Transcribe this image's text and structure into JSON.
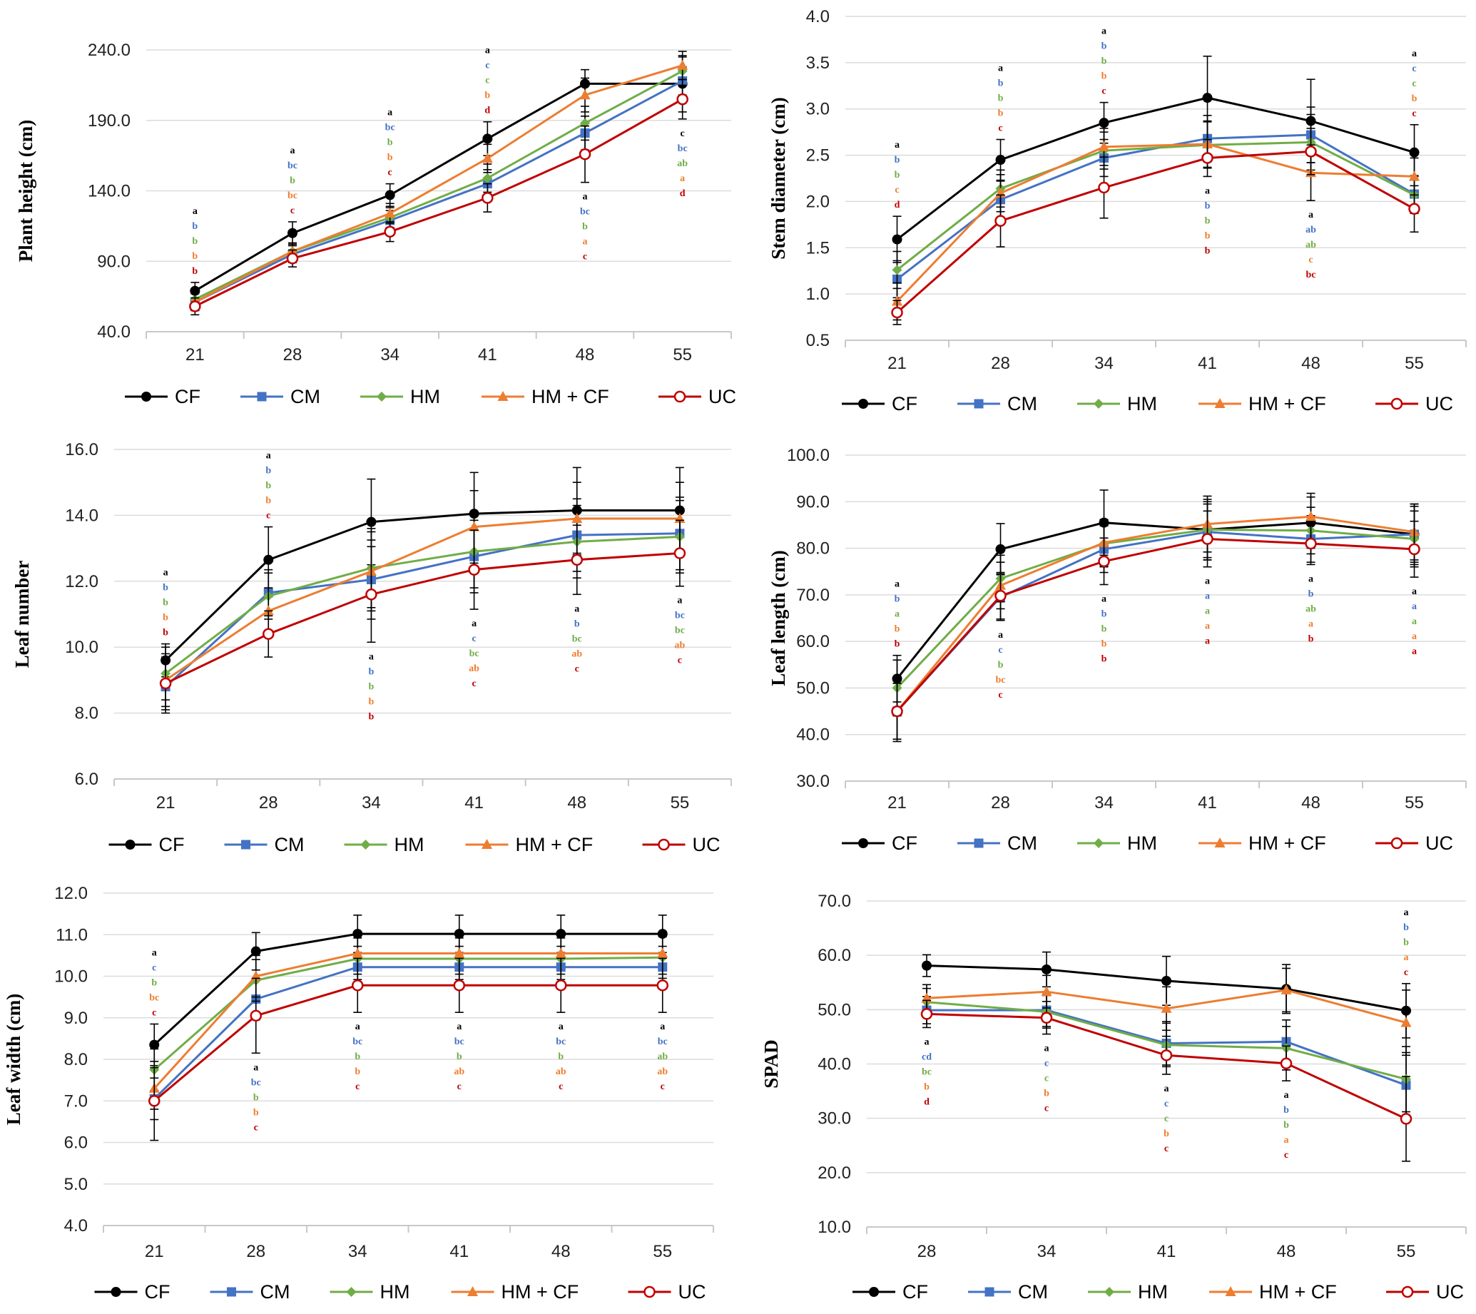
{
  "colors": {
    "CF": "#000000",
    "CM": "#4472C4",
    "HM": "#70AD47",
    "HM + CF": "#ED7D31",
    "UC": "#C00000"
  },
  "legend": [
    "CF",
    "CM",
    "HM",
    "HM + CF",
    "UC"
  ],
  "chart_data": [
    {
      "type": "line",
      "ylabel": "Plant height (cm)",
      "x": [
        "21",
        "28",
        "34",
        "41",
        "48",
        "55"
      ],
      "ylim": [
        40,
        240
      ],
      "yticks": [
        "40.0",
        "90.0",
        "140.0",
        "190.0",
        "240.0"
      ],
      "grid": true,
      "legend_position": "bottom",
      "series": [
        {
          "name": "CF",
          "values": [
            69,
            110,
            137,
            177,
            216,
            216
          ],
          "err": [
            6,
            8,
            8,
            12,
            10,
            20
          ]
        },
        {
          "name": "CM",
          "values": [
            61,
            95,
            119,
            145,
            181,
            218
          ],
          "err": [
            6,
            6,
            7,
            10,
            12,
            10
          ]
        },
        {
          "name": "HM",
          "values": [
            63,
            97,
            121,
            149,
            188,
            225
          ],
          "err": [
            6,
            6,
            7,
            10,
            12,
            10
          ]
        },
        {
          "name": "HM + CF",
          "values": [
            61,
            97,
            124,
            163,
            208,
            229
          ],
          "err": [
            6,
            6,
            7,
            10,
            12,
            10
          ]
        },
        {
          "name": "UC",
          "values": [
            58,
            92,
            111,
            135,
            166,
            205
          ],
          "err": [
            6,
            6,
            7,
            10,
            20,
            14
          ]
        }
      ],
      "letters": [
        {
          "x": "21",
          "pos": "above",
          "values": [
            "a",
            "b",
            "b",
            "b",
            "b"
          ]
        },
        {
          "x": "28",
          "pos": "above",
          "values": [
            "a",
            "bc",
            "b",
            "bc",
            "c"
          ]
        },
        {
          "x": "34",
          "pos": "above",
          "values": [
            "a",
            "bc",
            "b",
            "b",
            "c"
          ]
        },
        {
          "x": "41",
          "pos": "above",
          "values": [
            "a",
            "c",
            "c",
            "b",
            "d"
          ]
        },
        {
          "x": "48",
          "pos": "below",
          "values": [
            "a",
            "bc",
            "b",
            "a",
            "c"
          ]
        },
        {
          "x": "55",
          "pos": "below",
          "values": [
            "c",
            "bc",
            "ab",
            "a",
            "d"
          ]
        }
      ]
    },
    {
      "type": "line",
      "ylabel": "Stem diameter (cm)",
      "x": [
        "21",
        "28",
        "34",
        "41",
        "48",
        "55"
      ],
      "ylim": [
        0.5,
        4.0
      ],
      "yticks": [
        "0.5",
        "1.0",
        "1.5",
        "2.0",
        "2.5",
        "3.0",
        "3.5",
        "4.0"
      ],
      "grid": true,
      "legend_position": "bottom",
      "series": [
        {
          "name": "CF",
          "values": [
            1.59,
            2.45,
            2.85,
            3.12,
            2.87,
            2.53
          ],
          "err": [
            0.25,
            0.22,
            0.22,
            0.45,
            0.45,
            0.3
          ]
        },
        {
          "name": "CM",
          "values": [
            1.16,
            2.02,
            2.47,
            2.68,
            2.72,
            2.08
          ],
          "err": [
            0.2,
            0.2,
            0.2,
            0.25,
            0.3,
            0.2
          ]
        },
        {
          "name": "HM",
          "values": [
            1.26,
            2.14,
            2.55,
            2.61,
            2.64,
            2.07
          ],
          "err": [
            0.2,
            0.2,
            0.2,
            0.25,
            0.3,
            0.2
          ]
        },
        {
          "name": "HM + CF",
          "values": [
            0.92,
            2.09,
            2.59,
            2.62,
            2.31,
            2.27
          ],
          "err": [
            0.2,
            0.2,
            0.2,
            0.25,
            0.3,
            0.2
          ]
        },
        {
          "name": "UC",
          "values": [
            0.8,
            1.79,
            2.15,
            2.47,
            2.54,
            1.92
          ],
          "err": [
            0.13,
            0.28,
            0.33,
            0.2,
            0.25,
            0.25
          ]
        }
      ],
      "letters": [
        {
          "x": "21",
          "pos": "above",
          "values": [
            "a",
            "b",
            "b",
            "c",
            "d"
          ]
        },
        {
          "x": "28",
          "pos": "above",
          "values": [
            "a",
            "b",
            "b",
            "b",
            "c"
          ]
        },
        {
          "x": "34",
          "pos": "above",
          "values": [
            "a",
            "b",
            "b",
            "b",
            "c"
          ]
        },
        {
          "x": "41",
          "pos": "below",
          "values": [
            "a",
            "b",
            "b",
            "b",
            "b"
          ]
        },
        {
          "x": "48",
          "pos": "below",
          "values": [
            "a",
            "ab",
            "ab",
            "c",
            "bc"
          ]
        },
        {
          "x": "55",
          "pos": "above",
          "values": [
            "a",
            "c",
            "c",
            "b",
            "c"
          ]
        }
      ]
    },
    {
      "type": "line",
      "ylabel": "Leaf number",
      "x": [
        "21",
        "28",
        "34",
        "41",
        "48",
        "55"
      ],
      "ylim": [
        6,
        16
      ],
      "yticks": [
        "6.0",
        "8.0",
        "10.0",
        "12.0",
        "14.0",
        "16.0"
      ],
      "grid": true,
      "legend_position": "bottom",
      "series": [
        {
          "name": "CF",
          "values": [
            9.6,
            12.65,
            13.8,
            14.05,
            14.15,
            14.15
          ],
          "err": [
            0.5,
            1.0,
            1.3,
            1.25,
            1.3,
            1.3
          ]
        },
        {
          "name": "CM",
          "values": [
            8.8,
            11.65,
            12.05,
            12.75,
            13.4,
            13.45
          ],
          "err": [
            0.8,
            0.7,
            1.2,
            1.1,
            1.1,
            1.1
          ]
        },
        {
          "name": "HM",
          "values": [
            9.2,
            11.55,
            12.4,
            12.9,
            13.2,
            13.35
          ],
          "err": [
            0.8,
            0.7,
            1.2,
            1.1,
            1.1,
            1.1
          ]
        },
        {
          "name": "HM + CF",
          "values": [
            9.0,
            11.1,
            12.3,
            13.65,
            13.9,
            13.9
          ],
          "err": [
            0.8,
            0.7,
            1.2,
            1.1,
            1.1,
            1.1
          ]
        },
        {
          "name": "UC",
          "values": [
            8.9,
            10.4,
            11.6,
            12.35,
            12.65,
            12.85
          ],
          "err": [
            0.8,
            0.7,
            1.45,
            1.2,
            1.05,
            1.0
          ]
        }
      ],
      "letters": [
        {
          "x": "21",
          "pos": "above",
          "values": [
            "a",
            "b",
            "b",
            "b",
            "b"
          ]
        },
        {
          "x": "28",
          "pos": "above",
          "values": [
            "a",
            "b",
            "b",
            "b",
            "c"
          ]
        },
        {
          "x": "34",
          "pos": "below",
          "values": [
            "a",
            "b",
            "b",
            "b",
            "b"
          ]
        },
        {
          "x": "41",
          "pos": "below",
          "values": [
            "a",
            "c",
            "bc",
            "ab",
            "c"
          ]
        },
        {
          "x": "48",
          "pos": "below",
          "values": [
            "a",
            "b",
            "bc",
            "ab",
            "c"
          ]
        },
        {
          "x": "55",
          "pos": "below",
          "values": [
            "a",
            "bc",
            "bc",
            "ab",
            "c"
          ]
        }
      ]
    },
    {
      "type": "line",
      "ylabel": "Leaf length (cm)",
      "x": [
        "21",
        "28",
        "34",
        "41",
        "48",
        "55"
      ],
      "ylim": [
        30,
        100
      ],
      "yticks": [
        "30.0",
        "40.0",
        "50.0",
        "60.0",
        "70.0",
        "80.0",
        "90.0",
        "100.0"
      ],
      "grid": true,
      "legend_position": "bottom",
      "series": [
        {
          "name": "CF",
          "values": [
            52,
            79.8,
            85.5,
            84,
            85.5,
            83
          ],
          "err": [
            5,
            5.5,
            7,
            6.5,
            5.5,
            6.5
          ]
        },
        {
          "name": "CM",
          "values": [
            45,
            69.5,
            79.8,
            83.5,
            82,
            83
          ],
          "err": [
            6,
            5,
            5,
            6,
            5,
            6
          ]
        },
        {
          "name": "HM",
          "values": [
            50,
            73.5,
            81,
            84,
            83.8,
            82
          ],
          "err": [
            6,
            5,
            5,
            6,
            5,
            6
          ]
        },
        {
          "name": "HM + CF",
          "values": [
            45,
            72,
            81.2,
            85.2,
            86.8,
            83.5
          ],
          "err": [
            6,
            5,
            5,
            6,
            5,
            6
          ]
        },
        {
          "name": "UC",
          "values": [
            45,
            69.8,
            77.2,
            82,
            81,
            79.8
          ],
          "err": [
            6.5,
            5,
            5,
            6,
            4.5,
            6
          ]
        }
      ],
      "letters": [
        {
          "x": "21",
          "pos": "above",
          "values": [
            "a",
            "b",
            "a",
            "b",
            "b"
          ]
        },
        {
          "x": "28",
          "pos": "below",
          "values": [
            "a",
            "c",
            "b",
            "bc",
            "c"
          ]
        },
        {
          "x": "34",
          "pos": "below",
          "values": [
            "a",
            "b",
            "b",
            "b",
            "b"
          ]
        },
        {
          "x": "41",
          "pos": "below",
          "values": [
            "a",
            "a",
            "a",
            "a",
            "a"
          ]
        },
        {
          "x": "48",
          "pos": "below",
          "values": [
            "a",
            "b",
            "ab",
            "a",
            "b"
          ]
        },
        {
          "x": "55",
          "pos": "below",
          "values": [
            "a",
            "a",
            "a",
            "a",
            "a"
          ]
        }
      ]
    },
    {
      "type": "line",
      "ylabel": "Leaf width (cm)",
      "x": [
        "21",
        "28",
        "34",
        "41",
        "48",
        "55"
      ],
      "ylim": [
        4,
        12
      ],
      "yticks": [
        "4.0",
        "5.0",
        "6.0",
        "7.0",
        "8.0",
        "9.0",
        "10.0",
        "11.0",
        "12.0"
      ],
      "grid": true,
      "legend_position": "bottom",
      "series": [
        {
          "name": "CF",
          "values": [
            8.35,
            10.6,
            11.02,
            11.02,
            11.02,
            11.02
          ],
          "err": [
            0.5,
            0.45,
            0.45,
            0.45,
            0.45,
            0.45
          ]
        },
        {
          "name": "CM",
          "values": [
            7.05,
            9.45,
            10.22,
            10.22,
            10.22,
            10.22
          ],
          "err": [
            0.5,
            0.5,
            0.5,
            0.5,
            0.5,
            0.5
          ]
        },
        {
          "name": "HM",
          "values": [
            7.75,
            9.9,
            10.42,
            10.42,
            10.42,
            10.45
          ],
          "err": [
            0.5,
            0.5,
            0.5,
            0.5,
            0.5,
            0.5
          ]
        },
        {
          "name": "HM + CF",
          "values": [
            7.3,
            10.0,
            10.55,
            10.55,
            10.55,
            10.55
          ],
          "err": [
            0.5,
            0.5,
            0.5,
            0.5,
            0.5,
            0.5
          ]
        },
        {
          "name": "UC",
          "values": [
            7.0,
            9.05,
            9.78,
            9.78,
            9.78,
            9.78
          ],
          "err": [
            0.95,
            0.9,
            0.65,
            0.65,
            0.65,
            0.65
          ]
        }
      ],
      "letters": [
        {
          "x": "21",
          "pos": "above",
          "values": [
            "a",
            "c",
            "b",
            "bc",
            "c"
          ]
        },
        {
          "x": "28",
          "pos": "below",
          "values": [
            "a",
            "bc",
            "b",
            "b",
            "c"
          ]
        },
        {
          "x": "34",
          "pos": "below",
          "values": [
            "a",
            "bc",
            "b",
            "b",
            "c"
          ]
        },
        {
          "x": "41",
          "pos": "below",
          "values": [
            "a",
            "bc",
            "b",
            "ab",
            "c"
          ]
        },
        {
          "x": "48",
          "pos": "below",
          "values": [
            "a",
            "bc",
            "b",
            "ab",
            "c"
          ]
        },
        {
          "x": "55",
          "pos": "below",
          "values": [
            "a",
            "bc",
            "ab",
            "ab",
            "c"
          ]
        }
      ]
    },
    {
      "type": "line",
      "ylabel": "SPAD",
      "x": [
        "28",
        "34",
        "41",
        "48",
        "55"
      ],
      "ylim": [
        10,
        70
      ],
      "yticks": [
        "10.0",
        "20.0",
        "30.0",
        "40.0",
        "50.0",
        "60.0",
        "70.0"
      ],
      "grid": true,
      "legend_position": "bottom",
      "series": [
        {
          "name": "CF",
          "values": [
            58.1,
            57.4,
            55.3,
            53.8,
            49.8
          ],
          "err": [
            2.0,
            3.2,
            4.5,
            4.5,
            5.0
          ]
        },
        {
          "name": "CM",
          "values": [
            49.9,
            49.9,
            43.8,
            44.1,
            36.1
          ],
          "err": [
            2.5,
            3.0,
            4.0,
            4.0,
            6.0
          ]
        },
        {
          "name": "HM",
          "values": [
            51.4,
            49.6,
            43.5,
            42.9,
            37.2
          ],
          "err": [
            2.5,
            3.0,
            4.0,
            4.0,
            6.0
          ]
        },
        {
          "name": "HM + CF",
          "values": [
            52.1,
            53.3,
            50.2,
            53.6,
            47.6
          ],
          "err": [
            2.5,
            3.0,
            4.0,
            4.0,
            6.0
          ]
        },
        {
          "name": "UC",
          "values": [
            49.2,
            48.5,
            41.6,
            40.1,
            29.9
          ],
          "err": [
            2.5,
            3.0,
            3.5,
            3.2,
            7.8
          ]
        }
      ],
      "letters": [
        {
          "x": "28",
          "pos": "below",
          "values": [
            "a",
            "cd",
            "bc",
            "b",
            "d"
          ]
        },
        {
          "x": "34",
          "pos": "below",
          "values": [
            "a",
            "c",
            "c",
            "b",
            "c"
          ]
        },
        {
          "x": "41",
          "pos": "below",
          "values": [
            "a",
            "c",
            "c",
            "b",
            "c"
          ]
        },
        {
          "x": "48",
          "pos": "below",
          "values": [
            "a",
            "b",
            "b",
            "a",
            "c"
          ]
        },
        {
          "x": "55",
          "pos": "above",
          "values": [
            "a",
            "b",
            "b",
            "a",
            "c"
          ]
        }
      ]
    }
  ]
}
